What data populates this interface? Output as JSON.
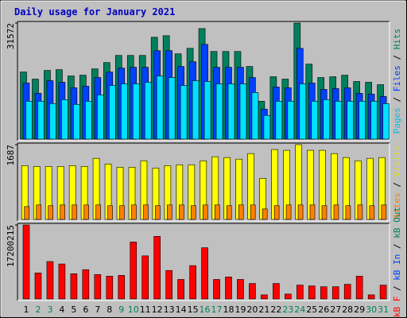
{
  "chart_data": {
    "type": "grouped-bar",
    "title": "Daily usage for January 2021",
    "title_color": "#0000c0",
    "categories": [
      "1",
      "2",
      "3",
      "4",
      "5",
      "6",
      "7",
      "8",
      "9",
      "10",
      "11",
      "12",
      "13",
      "14",
      "15",
      "16",
      "17",
      "18",
      "19",
      "20",
      "21",
      "22",
      "23",
      "24",
      "25",
      "26",
      "27",
      "28",
      "29",
      "30",
      "31"
    ],
    "category_colors": [
      "#000000",
      "#00805c",
      "#00805c",
      "#000000",
      "#000000",
      "#000000",
      "#000000",
      "#000000",
      "#00805c",
      "#00805c",
      "#000000",
      "#000000",
      "#000000",
      "#000000",
      "#000000",
      "#00805c",
      "#00805c",
      "#000000",
      "#000000",
      "#000000",
      "#000000",
      "#000000",
      "#00805c",
      "#00805c",
      "#000000",
      "#000000",
      "#000000",
      "#000000",
      "#000000",
      "#00805c",
      "#00805c"
    ],
    "legend_separator": " / ",
    "panels": [
      {
        "ylim": [
          0,
          31572
        ],
        "yticks": [
          31572
        ],
        "legend": [
          {
            "text": "Pages",
            "color": "#00c0e0"
          },
          {
            "text": "Files",
            "color": "#0040ff"
          },
          {
            "text": "Hits",
            "color": "#00805c"
          }
        ],
        "series": [
          {
            "color": "#00805c",
            "values": [
              18258,
              16325,
              18688,
              18902,
              17184,
              17399,
              19117,
              20836,
              22769,
              22769,
              22769,
              27709,
              28139,
              23198,
              24702,
              30072,
              23843,
              23843,
              23843,
              19762,
              10310,
              16969,
              16325,
              31572,
              20406,
              16754,
              16969,
              17399,
              15680,
              15466,
              14821
            ]
          },
          {
            "color": "#0040ff",
            "values": [
              15251,
              12458,
              15895,
              15466,
              13962,
              14392,
              16754,
              18258,
              19332,
              19547,
              19547,
              24058,
              24058,
              19762,
              21050,
              25776,
              19547,
              19547,
              19547,
              16754,
              8162,
              14177,
              13962,
              24702,
              15251,
              13532,
              13747,
              13962,
              12458,
              12244,
              11599
            ]
          },
          {
            "color": "#00e0ff",
            "values": [
              10310,
              10310,
              9666,
              10740,
              9451,
              10310,
              12029,
              14606,
              15036,
              15036,
              15466,
              17184,
              16754,
              14606,
              15895,
              15680,
              15036,
              15036,
              15036,
              12673,
              6444,
              10310,
              10310,
              15036,
              10310,
              10740,
              10310,
              10310,
              10310,
              10310,
              9666
            ]
          }
        ]
      },
      {
        "ylim": [
          0,
          1687
        ],
        "yticks": [
          1687
        ],
        "legend": [
          {
            "text": "Sites",
            "color": "#ff8000"
          },
          {
            "text": "Visits",
            "color": "#e0e000"
          }
        ],
        "series": [
          {
            "color": "#ffff00",
            "values": [
              1215,
              1197,
              1197,
              1197,
              1215,
              1197,
              1379,
              1252,
              1179,
              1179,
              1324,
              1161,
              1215,
              1234,
              1234,
              1324,
              1415,
              1397,
              1361,
              1487,
              925,
              1578,
              1560,
              1687,
              1560,
              1560,
              1487,
              1397,
              1324,
              1379,
              1397
            ]
          },
          {
            "color": "#ff8000",
            "values": [
              290,
              327,
              310,
              327,
              327,
              327,
              327,
              310,
              310,
              327,
              327,
              310,
              327,
              327,
              310,
              327,
              327,
              310,
              327,
              327,
              236,
              310,
              327,
              327,
              327,
              310,
              327,
              310,
              327,
              310,
              327
            ]
          }
        ]
      },
      {
        "ylim": [
          0,
          17200215
        ],
        "yticks": [
          17200215
        ],
        "legend": [
          {
            "text": "kB F",
            "color": "#ff0000"
          },
          {
            "text": "kB In",
            "color": "#0040ff"
          },
          {
            "text": "kB Out",
            "color": "#00805c"
          }
        ],
        "series": [
          {
            "color": "#ff0000",
            "values": [
              17200215,
              6048000,
              8695000,
              8128000,
              5859000,
              6805000,
              5670000,
              5292000,
              5481000,
              13231000,
              10018000,
              14554000,
              6615000,
              4536000,
              7750000,
              11908000,
              4536000,
              5103000,
              4536000,
              3591000,
              945000,
              3591000,
              1134000,
              3213000,
              3024000,
              2835000,
              2835000,
              3402000,
              5292000,
              945000,
              3213000
            ]
          }
        ]
      }
    ]
  }
}
